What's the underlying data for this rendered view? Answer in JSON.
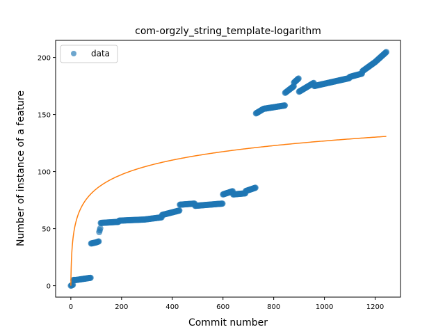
{
  "chart_data": {
    "type": "scatter",
    "title": "com-orgzly_string_template-logarithm",
    "xlabel": "Commit number",
    "ylabel": "Number of instance of a feature",
    "xlim": [
      -60,
      1300
    ],
    "ylim": [
      -10,
      215
    ],
    "xticks": [
      0,
      200,
      400,
      600,
      800,
      1000,
      1200
    ],
    "yticks": [
      0,
      50,
      100,
      150,
      200
    ],
    "grid": false,
    "legend_position": "top-left",
    "colors": {
      "data": "#1f77b4",
      "fit": "#ff7f0e"
    },
    "series": [
      {
        "name": "data",
        "kind": "scatter",
        "segments": [
          [
            0,
            10,
            0,
            1
          ],
          [
            10,
            20,
            5,
            5
          ],
          [
            20,
            50,
            5,
            6
          ],
          [
            50,
            80,
            6,
            7
          ],
          [
            80,
            100,
            37,
            38
          ],
          [
            100,
            112,
            38,
            39
          ],
          [
            112,
            118,
            47,
            52
          ],
          [
            118,
            190,
            55,
            56
          ],
          [
            190,
            290,
            57,
            58
          ],
          [
            290,
            360,
            58,
            60
          ],
          [
            360,
            430,
            62,
            66
          ],
          [
            430,
            490,
            71,
            72
          ],
          [
            490,
            600,
            70,
            72
          ],
          [
            600,
            640,
            80,
            83
          ],
          [
            640,
            690,
            80,
            81
          ],
          [
            690,
            730,
            83,
            86
          ],
          [
            730,
            760,
            151,
            155
          ],
          [
            760,
            845,
            155,
            158
          ],
          [
            845,
            880,
            169,
            175
          ],
          [
            880,
            900,
            178,
            182
          ],
          [
            900,
            960,
            170,
            178
          ],
          [
            960,
            1100,
            175,
            182
          ],
          [
            1100,
            1150,
            183,
            186
          ],
          [
            1150,
            1200,
            188,
            196
          ],
          [
            1200,
            1245,
            196,
            205
          ]
        ]
      },
      {
        "name": "",
        "kind": "line",
        "function": "a + b*ln(x+1)",
        "params": {
          "a": 0,
          "b": 18.36
        },
        "x_range": [
          0,
          1245
        ]
      }
    ]
  }
}
